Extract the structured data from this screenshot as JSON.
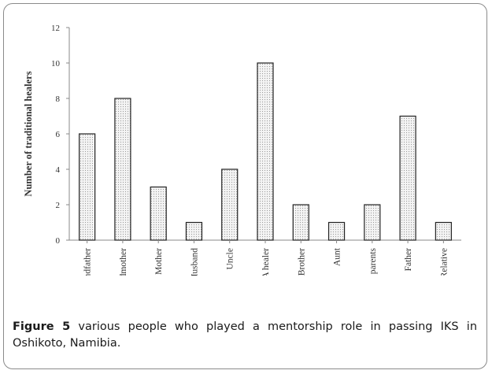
{
  "chart_data": {
    "type": "bar",
    "ylabel": "Number of traditional healers",
    "xlabel": "",
    "ylim": [
      0,
      12
    ],
    "yticks": [
      0,
      2,
      4,
      6,
      8,
      10,
      12
    ],
    "categories": [
      "Grandfather",
      "Grandmother",
      "Mother",
      "Husband",
      "Uncle",
      "A healer",
      "Brother",
      "Aunt",
      "Grand parents",
      "Father",
      "Relative"
    ],
    "values": [
      6,
      8,
      3,
      1,
      4,
      10,
      2,
      1,
      2,
      7,
      1
    ],
    "bar_fill": "dotted light gray",
    "grid": false
  },
  "caption": {
    "label": "Figure 5",
    "text": " various people who played a mentorship role in passing IKS in Oshikoto, Namibia."
  },
  "colors": {
    "frame": "#8a8a8a",
    "bar_stroke": "#222222",
    "axis": "#888888"
  }
}
